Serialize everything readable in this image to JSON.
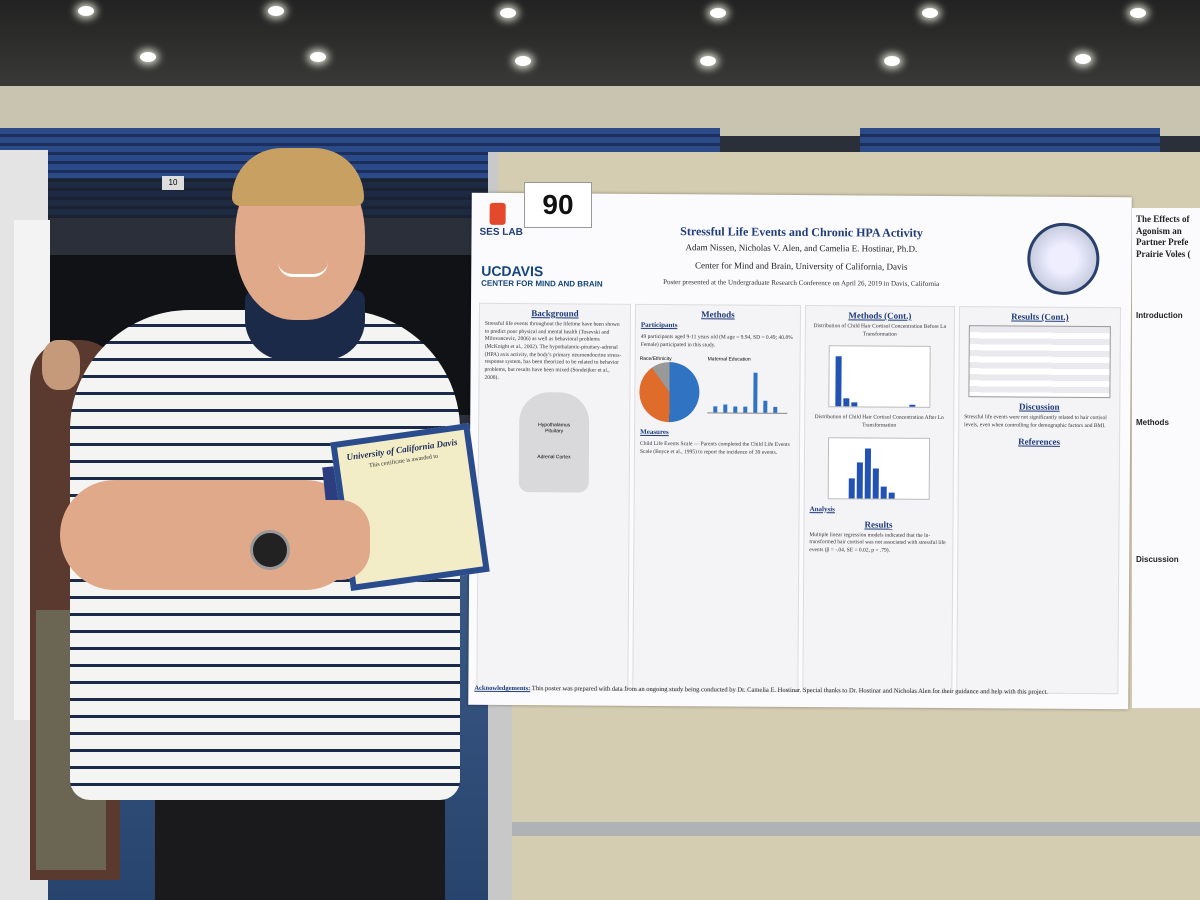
{
  "booth_number": "90",
  "arena_sign": "10",
  "poster": {
    "lab": "SES LAB",
    "institution_logo": "UCDAVIS",
    "institution_sub": "CENTER FOR MIND AND BRAIN",
    "title": "Stressful Life Events and Chronic HPA Activity",
    "authors": "Adam Nissen, Nicholas V. Alen, and Camelia E. Hostinar, Ph.D.",
    "center": "Center for Mind and Brain, University of California, Davis",
    "presented": "Poster presented at the Undergraduate Research Conference on April 26, 2019 in Davis, California",
    "background_head": "Background",
    "background_text": "Stressful life events throughout the lifetime have been shown to predict poor physical and mental health (Tosevski and Milovancevic, 2006) as well as behavioral problems (McKnight et al., 2002). The hypothalamic-pituitary-adrenal (HPA) axis activity, the body's primary neuroendocrine stress-response system, has been theorized to be related to behavior problems, but results have been mixed (Sondeijker et al., 2008).",
    "hpa_labels": [
      "Hypothalamus",
      "Pituitary",
      "Adrenal Cortex"
    ],
    "methods_head": "Methods",
    "participants_head": "Participants",
    "participants_text": "49 participants aged 9-11 years old (M age = 9.94, SD = 0.49; 40.8% Female) participated in this study.",
    "race_label": "Race/Ethnicity",
    "education_label": "Maternal Education",
    "measures_head": "Measures",
    "measures_text": "Child Life Events Scale — Parents completed the Child Life Events Scale (Boyce et al., 1995) to report the incidence of 39 events.",
    "methods_cont_head": "Methods (Cont.)",
    "hist1_label": "Distribution of Child Hair Cortisol Concentration Before Ln Transformation",
    "hist2_label": "Distribution of Child Hair Cortisol Concentration After Ln Transformation",
    "analysis_head": "Analysis",
    "results_head": "Results",
    "results_text": "Multiple linear regression models indicated that the ln-transformed hair cortisol was not associated with stressful life events (β = -.04, SE = 0.02, p = .79).",
    "results_cont_head": "Results (Cont.)",
    "discussion_head": "Discussion",
    "discussion_text": "Stressful life events were not significantly related to hair cortisol levels, even when controlling for demographic factors and BMI.",
    "references_head": "References",
    "ack_label": "Acknowledgements:",
    "ack_text": "This poster was prepared with data from an ongoing study being conducted by Dr. Camelia E. Hostinar. Special thanks to Dr. Hostinar and Nicholas Alen for their guidance and help with this project."
  },
  "poster2": {
    "title": "The Effects of Agonism an Partner Prefe Prairie Voles (",
    "intro_head": "Introduction",
    "methods_head": "Methods",
    "discussion_head": "Discussion"
  },
  "certificate": {
    "title": "University of California Davis",
    "line": "This certificate is awarded to"
  }
}
